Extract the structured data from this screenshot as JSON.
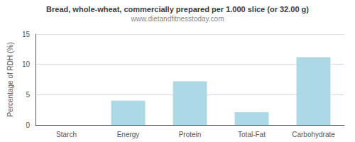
{
  "chart_data": {
    "type": "bar",
    "title": "Bread, whole-wheat, commercially prepared per 1.000 slice (or 32.00 g)",
    "subtitle": "www.dietandfitnesstoday.com",
    "categories": [
      "Starch",
      "Energy",
      "Protein",
      "Total-Fat",
      "Carbohydrate"
    ],
    "values": [
      0,
      4.0,
      7.2,
      2.1,
      11.2
    ],
    "color": "#add8e6",
    "ylabel": "Percentage of RDH (%)",
    "ylim": [
      0,
      15
    ],
    "yticks": [
      0,
      5,
      10,
      15
    ],
    "grid": true
  }
}
